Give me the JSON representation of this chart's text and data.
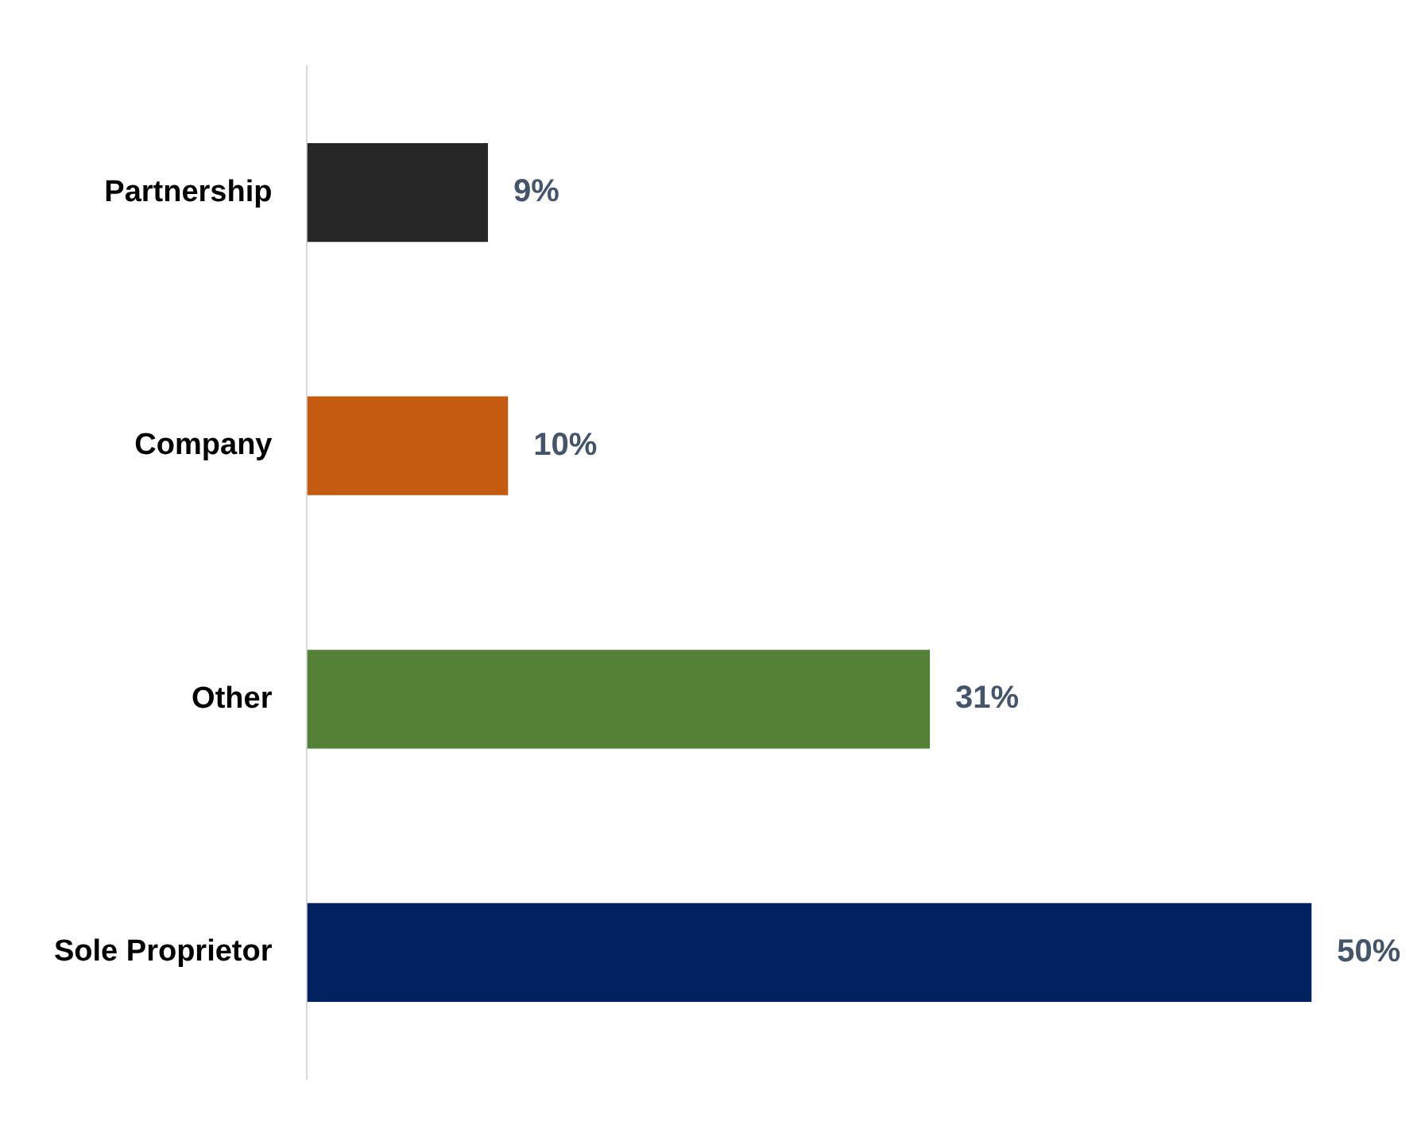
{
  "chart_data": {
    "type": "bar",
    "orientation": "horizontal",
    "categories": [
      "Partnership",
      "Company",
      "Other",
      "Sole Proprietor"
    ],
    "values": [
      9,
      10,
      31,
      50
    ],
    "colors": [
      "#262626",
      "#c55a11",
      "#538135",
      "#002060"
    ],
    "value_labels": [
      "9%",
      "10%",
      "31%",
      "50%"
    ],
    "tick_labels": "y",
    "grid": false,
    "legend": false
  }
}
